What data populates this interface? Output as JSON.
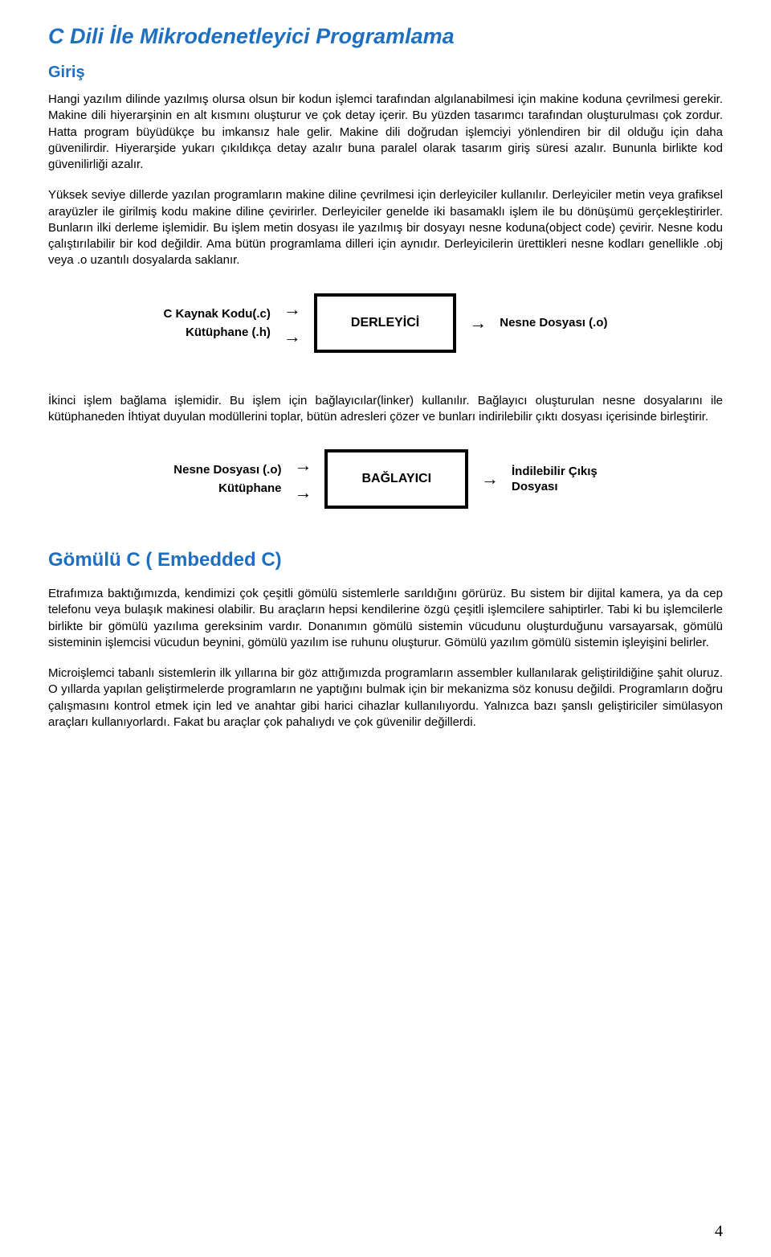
{
  "title": "C Dili İle Mikrodenetleyici Programlama",
  "section1": {
    "heading": "Giriş",
    "p1": "Hangi yazılım dilinde yazılmış olursa olsun bir kodun işlemci tarafından algılanabilmesi için makine koduna çevrilmesi gerekir. Makine dili hiyerarşinin en alt kısmını oluşturur ve çok detay içerir. Bu yüzden tasarımcı tarafından oluşturulması çok zordur. Hatta program büyüdükçe bu imkansız hale gelir. Makine dili doğrudan işlemciyi yönlendiren bir dil olduğu için daha güvenilirdir. Hiyerarşide yukarı çıkıldıkça detay azalır buna paralel olarak tasarım giriş süresi azalır. Bununla birlikte kod güvenilirliği azalır.",
    "p2": "Yüksek seviye dillerde yazılan programların makine diline çevrilmesi için derleyiciler kullanılır. Derleyiciler metin veya grafiksel arayüzler ile girilmiş kodu makine diline çevirirler. Derleyiciler genelde iki basamaklı işlem ile bu dönüşümü gerçekleştirirler. Bunların ilki derleme işlemidir. Bu işlem metin dosyası ile yazılmış bir dosyayı nesne koduna(object code) çevirir. Nesne kodu çalıştırılabilir bir kod değildir. Ama bütün programlama dilleri için aynıdır. Derleyicilerin ürettikleri nesne kodları genellikle .obj veya .o uzantılı dosyalarda saklanır."
  },
  "diagram1": {
    "input1": "C Kaynak Kodu(.c)",
    "input2": "Kütüphane (.h)",
    "box": "DERLEYİCİ",
    "output": "Nesne Dosyası (.o)"
  },
  "p_middle": "İkinci işlem bağlama işlemidir. Bu işlem için bağlayıcılar(linker) kullanılır. Bağlayıcı oluşturulan nesne dosyalarını ile kütüphaneden İhtiyat duyulan modüllerini toplar, bütün adresleri çözer ve bunları indirilebilir çıktı dosyası içerisinde birleştirir.",
  "diagram2": {
    "input1": "Nesne Dosyası (.o)",
    "input2": "Kütüphane",
    "box": "BAĞLAYICI",
    "output_l1": "İndilebilir Çıkış",
    "output_l2": "Dosyası"
  },
  "section2": {
    "heading": "Gömülü C ( Embedded C)",
    "p1": "Etrafımıza baktığımızda, kendimizi çok çeşitli gömülü sistemlerle sarıldığını görürüz. Bu sistem bir dijital kamera, ya da cep telefonu veya bulaşık makinesi olabilir. Bu araçların hepsi kendilerine özgü çeşitli işlemcilere sahiptirler. Tabi ki bu işlemcilerle birlikte bir gömülü yazılıma gereksinim vardır. Donanımın gömülü sistemin vücudunu oluşturduğunu varsayarsak, gömülü sisteminin işlemcisi vücudun beynini, gömülü yazılım ise ruhunu oluşturur. Gömülü yazılım gömülü sistemin işleyişini belirler.",
    "p2": "Microişlemci tabanlı sistemlerin ilk yıllarına bir göz attığımızda programların assembler kullanılarak geliştirildiğine şahit oluruz. O yıllarda yapılan geliştirmelerde programların ne yaptığını bulmak için bir mekanizma söz konusu değildi. Programların doğru çalışmasını kontrol etmek için led ve anahtar gibi harici cihazlar kullanılıyordu. Yalnızca bazı şanslı geliştiriciler simülasyon araçları kullanıyorlardı. Fakat  bu araçlar çok pahalıydı ve çok güvenilir değillerdi."
  },
  "page_number": "4",
  "colors": {
    "heading": "#1f6fc1",
    "text": "#000000",
    "background": "#ffffff",
    "border": "#000000"
  }
}
